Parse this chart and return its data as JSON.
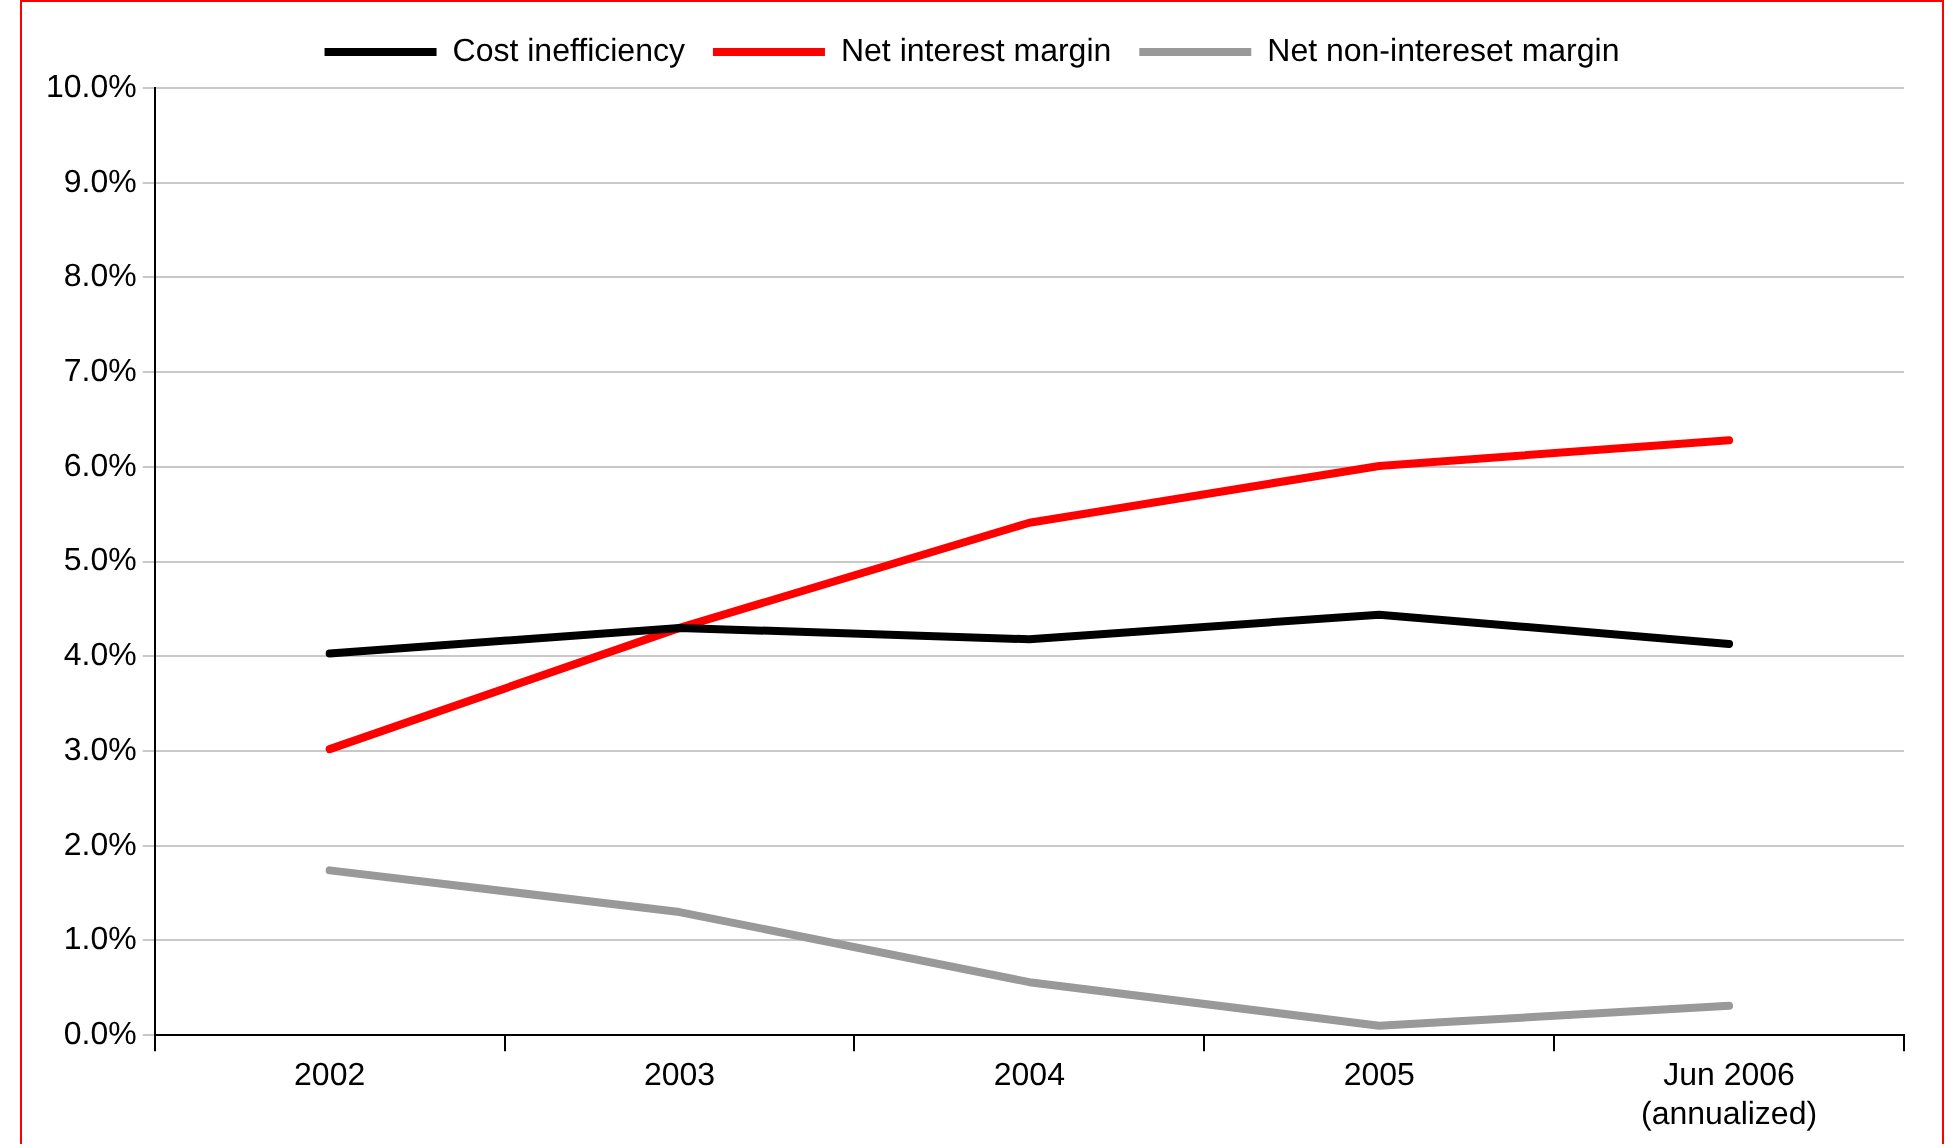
{
  "chart_data": {
    "type": "line",
    "categories": [
      "2002",
      "2003",
      "2004",
      "2005",
      "Jun 2006\n(annualized)"
    ],
    "series": [
      {
        "name": "Cost inefficiency",
        "color": "#000000",
        "values": [
          4.03,
          4.3,
          4.18,
          4.44,
          4.13
        ]
      },
      {
        "name": "Net interest margin",
        "color": "#ff0000",
        "values": [
          3.02,
          4.3,
          5.41,
          6.01,
          6.28
        ]
      },
      {
        "name": "Net non-intereset margin",
        "color": "#999999",
        "values": [
          1.74,
          1.3,
          0.56,
          0.1,
          0.31
        ]
      }
    ],
    "ylim": [
      0,
      10
    ],
    "yticks": [
      {
        "value": 0,
        "label": "0.0%"
      },
      {
        "value": 1,
        "label": "1.0%"
      },
      {
        "value": 2,
        "label": "2.0%"
      },
      {
        "value": 3,
        "label": "3.0%"
      },
      {
        "value": 4,
        "label": "4.0%"
      },
      {
        "value": 5,
        "label": "5.0%"
      },
      {
        "value": 6,
        "label": "6.0%"
      },
      {
        "value": 7,
        "label": "7.0%"
      },
      {
        "value": 8,
        "label": "8.0%"
      },
      {
        "value": 9,
        "label": "9.0%"
      },
      {
        "value": 10,
        "label": "10.0%"
      }
    ],
    "grid": "y",
    "legend": "top",
    "marker": "none",
    "line_style": "solid"
  }
}
